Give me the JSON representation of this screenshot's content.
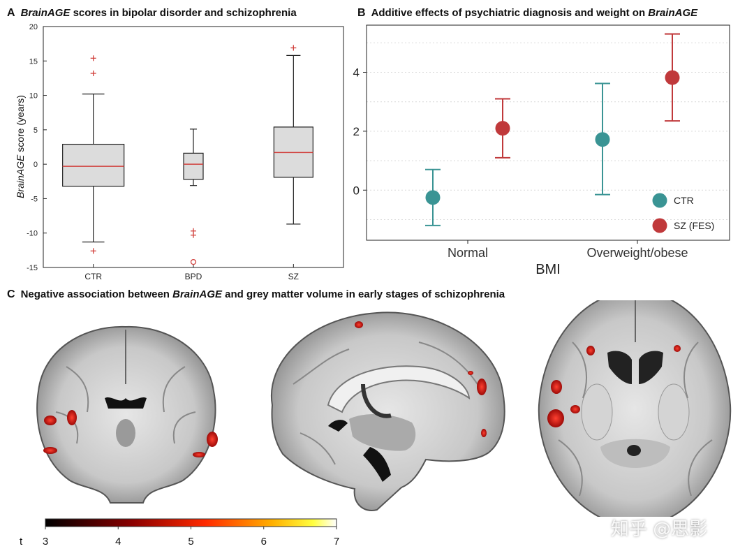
{
  "panel_a": {
    "letter": "A",
    "title_italic": "BrainAGE",
    "title_rest": " scores in bipolar disorder and schizophrenia",
    "ylabel_italic": "BrainAGE",
    "ylabel_rest": " score (years)"
  },
  "panel_b": {
    "letter": "B",
    "title_rest": "Additive effects of psychiatric diagnosis and weight on ",
    "title_italic": "BrainAGE",
    "xlabel": "BMI"
  },
  "panel_c": {
    "letter": "C",
    "title_pre": "Negative association between ",
    "title_italic": "BrainAGE",
    "title_post": " and grey matter volume in early stages of schizophrenia",
    "colorbar_label": "t",
    "colorbar_ticks": [
      "3",
      "4",
      "5",
      "6",
      "7"
    ]
  },
  "watermark": "知乎 @思影",
  "colors": {
    "box_fill": "#dcdcdc",
    "median": "#d1403c",
    "outlier": "#d1403c",
    "ctr": "#3a9494",
    "sz": "#c0393b"
  },
  "chart_data": [
    {
      "type": "box",
      "ylim": [
        -15,
        20
      ],
      "yticks": [
        -15,
        -10,
        -5,
        0,
        5,
        10,
        15,
        20
      ],
      "categories": [
        "CTR",
        "BPD",
        "SZ"
      ],
      "boxes": [
        {
          "category": "CTR",
          "whisker_low": -11.3,
          "q1": -3.2,
          "median": -0.3,
          "q3": 2.9,
          "whisker_high": 10.2,
          "outliers_plus": [
            15.4,
            13.2,
            -12.6
          ],
          "outliers_circle": []
        },
        {
          "category": "BPD",
          "whisker_low": -3.1,
          "q1": -2.2,
          "median": 0.0,
          "q3": 1.6,
          "whisker_high": 5.1,
          "outliers_plus": [
            -9.7,
            -10.3
          ],
          "outliers_circle": [
            -14.2
          ]
        },
        {
          "category": "SZ",
          "whisker_low": -8.7,
          "q1": -1.9,
          "median": 1.7,
          "q3": 5.4,
          "whisker_high": 15.8,
          "outliers_plus": [
            16.9
          ],
          "outliers_circle": []
        }
      ]
    },
    {
      "type": "scatter",
      "xlabel": "BMI",
      "ylim": [
        -1.7,
        5.6
      ],
      "yticks": [
        0,
        2,
        4
      ],
      "categories": [
        "Normal",
        "Overweight/obese"
      ],
      "series": [
        {
          "name": "CTR",
          "points": [
            {
              "category": "Normal",
              "y": -0.25,
              "low": -1.2,
              "high": 0.7
            },
            {
              "category": "Overweight/obese",
              "y": 1.72,
              "low": -0.15,
              "high": 3.62
            }
          ]
        },
        {
          "name": "SZ (FES)",
          "points": [
            {
              "category": "Normal",
              "y": 2.1,
              "low": 1.1,
              "high": 3.1
            },
            {
              "category": "Overweight/obese",
              "y": 3.82,
              "low": 2.35,
              "high": 5.3
            }
          ]
        }
      ],
      "legend": "bottom-right",
      "grid": "horizontal dotted"
    }
  ]
}
